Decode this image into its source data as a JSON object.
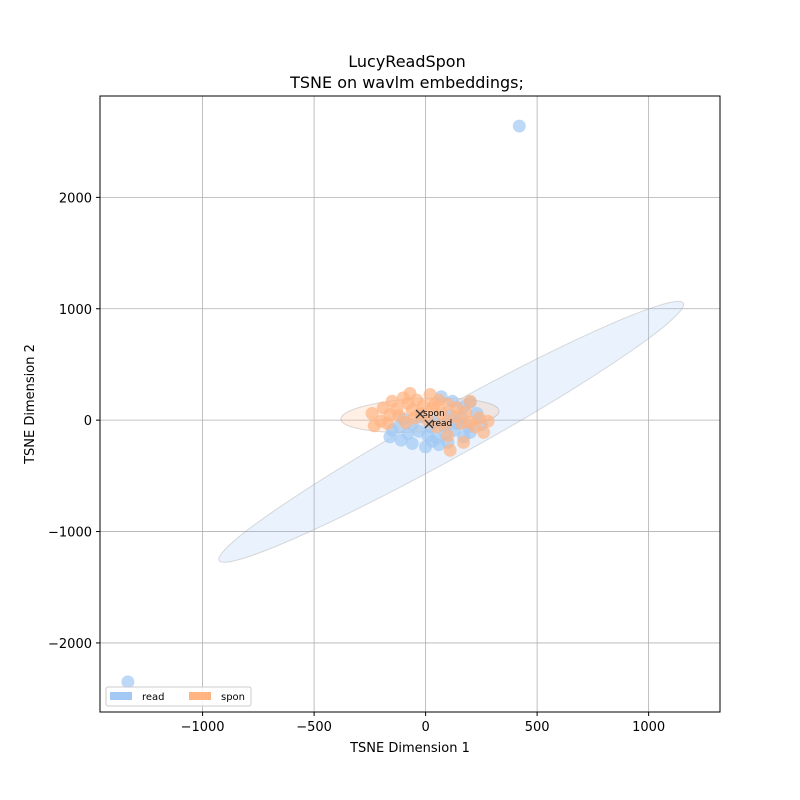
{
  "chart_data": {
    "type": "scatter",
    "title_line1": "LucyReadSpon",
    "title_line2": "TSNE on wavlm embeddings;",
    "xlabel": "TSNE Dimension 1",
    "ylabel": "TSNE Dimension 2",
    "xlim": [
      -1460,
      1320
    ],
    "ylim": [
      -2620,
      2910
    ],
    "xticks": [
      -1000,
      -500,
      0,
      500,
      1000
    ],
    "xtick_labels": [
      "−1000",
      "−500",
      "0",
      "500",
      "1000"
    ],
    "yticks": [
      -2000,
      -1000,
      0,
      1000,
      2000
    ],
    "ytick_labels": [
      "−2000",
      "−1000",
      "0",
      "1000",
      "2000"
    ],
    "grid": true,
    "legend_position": "bottom-left",
    "series": [
      {
        "name": "read",
        "color": "#a1c9f4",
        "points": [
          [
            420,
            2640
          ],
          [
            -1335,
            -2350
          ],
          [
            -160,
            -150
          ],
          [
            -110,
            -180
          ],
          [
            -60,
            -210
          ],
          [
            0,
            -240
          ],
          [
            60,
            -220
          ],
          [
            -80,
            -120
          ],
          [
            -30,
            -100
          ],
          [
            10,
            -140
          ],
          [
            50,
            -160
          ],
          [
            90,
            -120
          ],
          [
            130,
            -90
          ],
          [
            170,
            -150
          ],
          [
            200,
            -110
          ],
          [
            -120,
            -60
          ],
          [
            -60,
            -40
          ],
          [
            20,
            -60
          ],
          [
            80,
            -50
          ],
          [
            140,
            -30
          ],
          [
            230,
            60
          ],
          [
            170,
            120
          ],
          [
            120,
            170
          ],
          [
            70,
            210
          ],
          [
            200,
            160
          ],
          [
            110,
            40
          ],
          [
            160,
            20
          ],
          [
            -20,
            30
          ],
          [
            40,
            -20
          ],
          [
            -100,
            10
          ],
          [
            250,
            -40
          ],
          [
            190,
            -60
          ],
          [
            -150,
            -90
          ],
          [
            100,
            -200
          ],
          [
            30,
            -190
          ]
        ],
        "centroid": [
          15,
          -35
        ],
        "centroid_label": "read",
        "ellipse": {
          "cx": 115,
          "cy": -105,
          "rx": 1190,
          "ry": 220,
          "angle_deg": -29
        }
      },
      {
        "name": "spon",
        "color": "#ffb482",
        "points": [
          [
            -70,
            240
          ],
          [
            -100,
            200
          ],
          [
            -150,
            170
          ],
          [
            -190,
            110
          ],
          [
            -240,
            60
          ],
          [
            -230,
            -50
          ],
          [
            -200,
            -10
          ],
          [
            -160,
            50
          ],
          [
            -130,
            100
          ],
          [
            -80,
            150
          ],
          [
            -40,
            180
          ],
          [
            20,
            230
          ],
          [
            60,
            180
          ],
          [
            100,
            140
          ],
          [
            140,
            110
          ],
          [
            180,
            70
          ],
          [
            200,
            170
          ],
          [
            240,
            20
          ],
          [
            280,
            -10
          ],
          [
            260,
            -110
          ],
          [
            220,
            -60
          ],
          [
            170,
            -200
          ],
          [
            110,
            -270
          ],
          [
            100,
            -140
          ],
          [
            50,
            -60
          ],
          [
            10,
            0
          ],
          [
            -20,
            60
          ],
          [
            -50,
            20
          ],
          [
            -90,
            -20
          ],
          [
            -120,
            40
          ],
          [
            30,
            110
          ],
          [
            70,
            60
          ],
          [
            130,
            30
          ],
          [
            160,
            -30
          ],
          [
            -10,
            130
          ],
          [
            -60,
            90
          ],
          [
            90,
            -30
          ],
          [
            200,
            -20
          ],
          [
            -170,
            -30
          ],
          [
            40,
            140
          ]
        ],
        "centroid": [
          -25,
          55
        ],
        "centroid_label": "spon",
        "ellipse": {
          "cx": -25,
          "cy": 45,
          "rx": 355,
          "ry": 150,
          "angle_deg": -3
        }
      }
    ]
  }
}
